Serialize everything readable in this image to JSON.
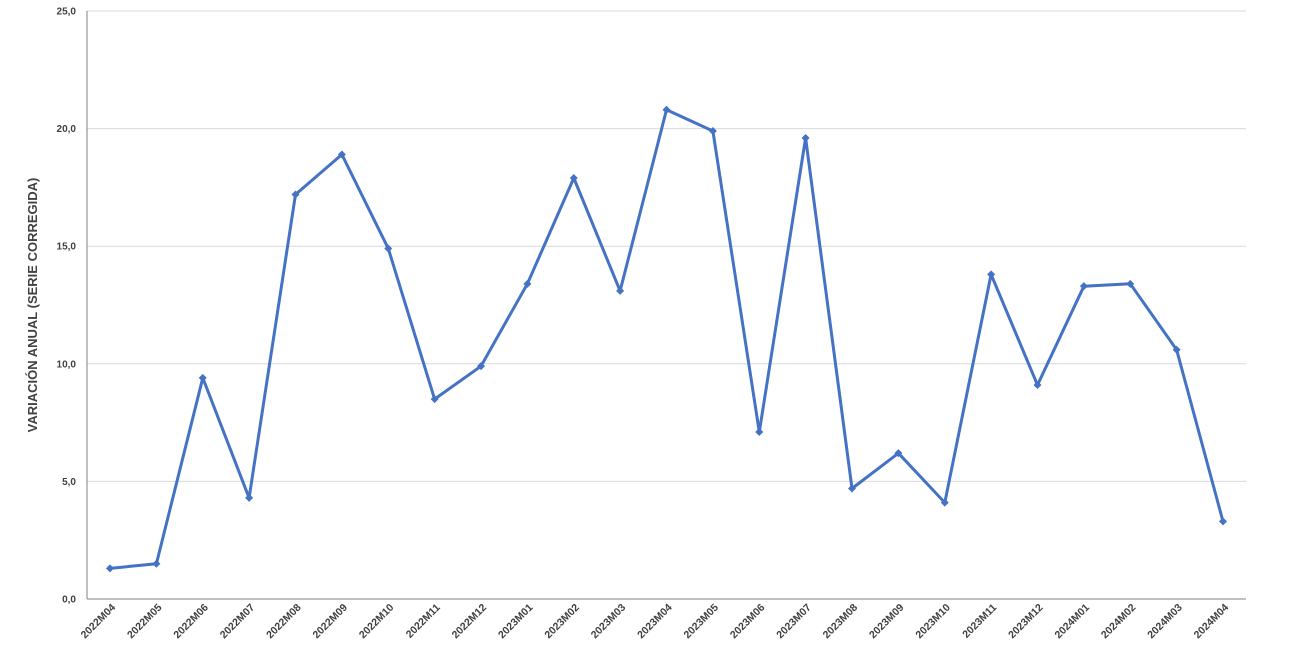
{
  "chart_data": {
    "type": "line",
    "title": "",
    "xlabel": "",
    "ylabel": "VARIACIÓN ANUAL (SERIE CORREGIDA)",
    "ylim": [
      0,
      25
    ],
    "yticks": [
      "0,0",
      "5,0",
      "10,0",
      "15,0",
      "20,0",
      "25,0"
    ],
    "grid": true,
    "legend": "none",
    "colors": {
      "series": "#4472C4",
      "grid": "#d9d9d9",
      "axis": "#808080",
      "text": "#404040"
    },
    "categories": [
      "2022M04",
      "2022M05",
      "2022M06",
      "2022M07",
      "2022M08",
      "2022M09",
      "2022M10",
      "2022M11",
      "2022M12",
      "2023M01",
      "2023M02",
      "2023M03",
      "2023M04",
      "2023M05",
      "2023M06",
      "2023M07",
      "2023M08",
      "2023M09",
      "2023M10",
      "2023M11",
      "2023M12",
      "2024M01",
      "2024M02",
      "2024M03",
      "2024M04"
    ],
    "series": [
      {
        "values": [
          1.3,
          1.5,
          9.4,
          4.3,
          17.2,
          18.9,
          14.9,
          8.5,
          9.9,
          13.4,
          17.9,
          13.1,
          20.8,
          19.9,
          7.1,
          19.6,
          4.7,
          6.2,
          4.1,
          13.8,
          9.1,
          13.3,
          13.4,
          10.6,
          3.3
        ]
      }
    ]
  }
}
